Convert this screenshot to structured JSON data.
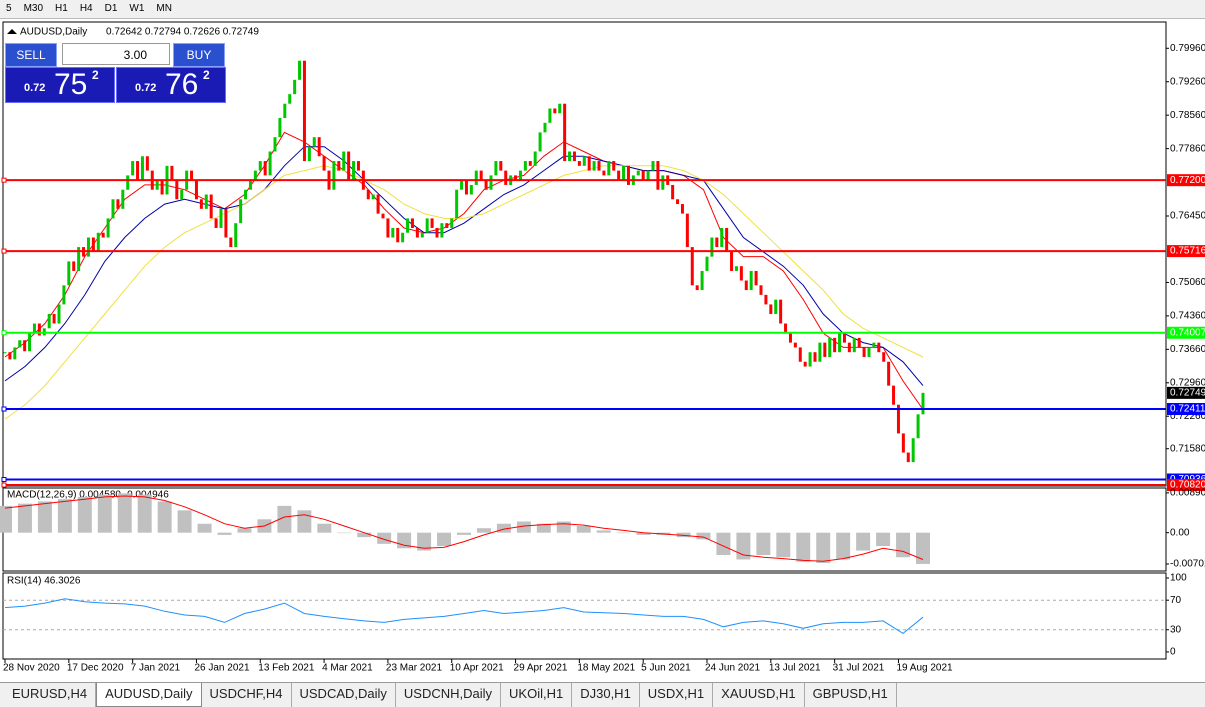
{
  "toolbar": [
    "5",
    "M30",
    "H1",
    "H4",
    "D1",
    "W1",
    "MN"
  ],
  "trade_panel": {
    "sell": "SELL",
    "buy": "BUY",
    "volume": "3.00",
    "bid_big": "0.72",
    "bid_main": "75",
    "bid_small": "2",
    "ask_big": "0.72",
    "ask_main": "76",
    "ask_small": "2"
  },
  "tabs": [
    "EURUSD,H4",
    "AUDUSD,Daily",
    "USDCHF,H4",
    "USDCAD,Daily",
    "USDCNH,Daily",
    "UKOil,H1",
    "DJ30,H1",
    "USDX,H1",
    "XAUUSD,H1",
    "GBPUSD,H1"
  ],
  "active_tab": 1,
  "chart_data": [
    {
      "type": "candlestick",
      "title": "AUDUSD,Daily",
      "subtitle": "0.72642 0.72794 0.72626 0.72749",
      "up_color": "#00c800",
      "down_color": "#ff0000",
      "categories": [
        "28 Nov 2020",
        null,
        null,
        null,
        null,
        null,
        null,
        null,
        null,
        null,
        null,
        null,
        null,
        "17 Dec 2020",
        null,
        null,
        null,
        null,
        null,
        null,
        null,
        null,
        null,
        null,
        null,
        null,
        "7 Jan 2021",
        null,
        null,
        null,
        null,
        null,
        null,
        null,
        null,
        null,
        null,
        null,
        null,
        "26 Jan 2021",
        null,
        null,
        null,
        null,
        null,
        null,
        null,
        null,
        null,
        null,
        null,
        null,
        "13 Feb 2021",
        null,
        null,
        null,
        null,
        null,
        null,
        null,
        null,
        null,
        null,
        null,
        null,
        "4 Mar 2021",
        null,
        null,
        null,
        null,
        null,
        null,
        null,
        null,
        null,
        null,
        null,
        null,
        "23 Mar 2021",
        null,
        null,
        null,
        null,
        null,
        null,
        null,
        null,
        null,
        null,
        null,
        null,
        "10 Apr 2021",
        null,
        null,
        null,
        null,
        null,
        null,
        null,
        null,
        null,
        null,
        null,
        null,
        "29 Apr 2021",
        null,
        null,
        null,
        null,
        null,
        null,
        null,
        null,
        null,
        null,
        null,
        null,
        "18 May 2021",
        null,
        null,
        null,
        null,
        null,
        null,
        null,
        null,
        null,
        null,
        null,
        null,
        "5 Jun 2021",
        null,
        null,
        null,
        null,
        null,
        null,
        null,
        null,
        null,
        null,
        null,
        null,
        "24 Jun 2021",
        null,
        null,
        null,
        null,
        null,
        null,
        null,
        null,
        null,
        null,
        null,
        null,
        "13 Jul 2021",
        null,
        null,
        null,
        null,
        null,
        null,
        null,
        null,
        null,
        null,
        null,
        null,
        "31 Jul 2021",
        null,
        null,
        null,
        null,
        null,
        null,
        null,
        null,
        null,
        null,
        null,
        null,
        "19 Aug 2021",
        null,
        null,
        null,
        null,
        null
      ],
      "values": [
        0.736,
        0.7345,
        0.737,
        0.7385,
        0.7362,
        0.74,
        0.742,
        0.7395,
        0.741,
        0.744,
        0.742,
        0.746,
        0.75,
        0.755,
        0.753,
        0.758,
        0.756,
        0.76,
        0.757,
        0.761,
        0.76,
        0.764,
        0.768,
        0.766,
        0.77,
        0.773,
        0.776,
        0.772,
        0.777,
        0.774,
        0.77,
        0.772,
        0.769,
        0.775,
        0.772,
        0.768,
        0.77,
        0.774,
        0.772,
        0.768,
        0.766,
        0.769,
        0.764,
        0.762,
        0.766,
        0.76,
        0.758,
        0.763,
        0.768,
        0.77,
        0.772,
        0.774,
        0.776,
        0.773,
        0.778,
        0.781,
        0.785,
        0.788,
        0.79,
        0.793,
        0.797,
        0.776,
        0.779,
        0.781,
        0.777,
        0.774,
        0.77,
        0.776,
        0.774,
        0.778,
        0.772,
        0.776,
        0.774,
        0.77,
        0.768,
        0.769,
        0.765,
        0.764,
        0.76,
        0.762,
        0.759,
        0.761,
        0.764,
        0.762,
        0.76,
        0.761,
        0.764,
        0.762,
        0.76,
        0.763,
        0.762,
        0.764,
        0.77,
        0.772,
        0.769,
        0.771,
        0.774,
        0.772,
        0.77,
        0.773,
        0.776,
        0.774,
        0.771,
        0.773,
        0.772,
        0.774,
        0.776,
        0.775,
        0.778,
        0.782,
        0.784,
        0.787,
        0.786,
        0.788,
        0.776,
        0.778,
        0.776,
        0.775,
        0.777,
        0.774,
        0.776,
        0.774,
        0.773,
        0.776,
        0.774,
        0.772,
        0.775,
        0.771,
        0.773,
        0.774,
        0.772,
        0.774,
        0.776,
        0.77,
        0.773,
        0.771,
        0.768,
        0.767,
        0.765,
        0.758,
        0.75,
        0.749,
        0.753,
        0.756,
        0.76,
        0.758,
        0.762,
        0.757,
        0.753,
        0.754,
        0.751,
        0.749,
        0.753,
        0.75,
        0.748,
        0.746,
        0.744,
        0.747,
        0.742,
        0.74,
        0.738,
        0.737,
        0.734,
        0.733,
        0.736,
        0.734,
        0.738,
        0.735,
        0.739,
        0.736,
        0.74,
        0.738,
        0.736,
        0.739,
        0.737,
        0.735,
        0.737,
        0.738,
        0.736,
        0.734,
        0.729,
        0.725,
        0.719,
        0.715,
        0.713,
        0.718,
        0.723,
        0.7275
      ],
      "overlays": [
        {
          "color": "#ff0000",
          "values": [
            0.735,
            0.738,
            0.742,
            0.748,
            0.756,
            0.762,
            0.768,
            0.771,
            0.771,
            0.77,
            0.768,
            0.766,
            0.769,
            0.775,
            0.782,
            0.78,
            0.777,
            0.774,
            0.771,
            0.766,
            0.762,
            0.761,
            0.762,
            0.765,
            0.77,
            0.772,
            0.773,
            0.777,
            0.78,
            0.778,
            0.776,
            0.775,
            0.774,
            0.774,
            0.773,
            0.77,
            0.76,
            0.756,
            0.756,
            0.753,
            0.747,
            0.74,
            0.737,
            0.737,
            0.737,
            0.73,
            0.724
          ]
        },
        {
          "color": "#0000aa",
          "values": [
            0.73,
            0.733,
            0.737,
            0.742,
            0.748,
            0.755,
            0.76,
            0.764,
            0.767,
            0.768,
            0.767,
            0.766,
            0.767,
            0.77,
            0.775,
            0.779,
            0.779,
            0.776,
            0.772,
            0.768,
            0.764,
            0.761,
            0.761,
            0.763,
            0.766,
            0.769,
            0.771,
            0.774,
            0.777,
            0.777,
            0.776,
            0.775,
            0.774,
            0.774,
            0.773,
            0.772,
            0.766,
            0.76,
            0.757,
            0.754,
            0.75,
            0.744,
            0.74,
            0.738,
            0.737,
            0.734,
            0.729
          ]
        },
        {
          "color": "#f0e040",
          "values": [
            0.722,
            0.725,
            0.729,
            0.734,
            0.739,
            0.744,
            0.749,
            0.754,
            0.758,
            0.761,
            0.763,
            0.765,
            0.767,
            0.77,
            0.773,
            0.774,
            0.775,
            0.774,
            0.772,
            0.77,
            0.767,
            0.765,
            0.764,
            0.764,
            0.765,
            0.767,
            0.769,
            0.771,
            0.773,
            0.774,
            0.775,
            0.775,
            0.775,
            0.775,
            0.774,
            0.772,
            0.769,
            0.765,
            0.761,
            0.757,
            0.753,
            0.749,
            0.744,
            0.741,
            0.739,
            0.737,
            0.735
          ]
        }
      ],
      "levels": [
        {
          "value": 0.772,
          "label": "0.77200",
          "color": "#ff0000"
        },
        {
          "value": 0.75716,
          "label": "0.75716",
          "color": "#ff0000"
        },
        {
          "value": 0.74007,
          "label": "0.74007",
          "color": "#00ff00"
        },
        {
          "value": 0.72411,
          "label": "0.72411",
          "color": "#0000ff"
        },
        {
          "value": 0.70936,
          "label": "0.70936",
          "color": "#0000ff"
        },
        {
          "value": 0.7082,
          "label": "0.70820",
          "color": "#ff0000"
        }
      ],
      "last": {
        "value": 0.72749,
        "label": "0.72749"
      },
      "ylim": [
        0.708,
        0.8051
      ],
      "yticks": [
        {
          "value": 0.7996,
          "label": "0.79960"
        },
        {
          "value": 0.7926,
          "label": "0.79260"
        },
        {
          "value": 0.7856,
          "label": "0.78560"
        },
        {
          "value": 0.7786,
          "label": "0.77860"
        },
        {
          "value": 0.7645,
          "label": "0.76450"
        },
        {
          "value": 0.7506,
          "label": "0.75060"
        },
        {
          "value": 0.7436,
          "label": "0.74360"
        },
        {
          "value": 0.7366,
          "label": "0.73660"
        },
        {
          "value": 0.7296,
          "label": "0.72960"
        },
        {
          "value": 0.7226,
          "label": "0.72260"
        },
        {
          "value": 0.7158,
          "label": "0.71580"
        }
      ]
    },
    {
      "type": "macd",
      "title": "MACD(12,26,9) 0.004580 -0.004946",
      "color": "#c0c0c0",
      "signal_color": "#ff0000",
      "values": [
        0.006,
        0.0065,
        0.007,
        0.0075,
        0.008,
        0.0085,
        0.0088,
        0.0085,
        0.007,
        0.005,
        0.002,
        -0.0005,
        0.001,
        0.003,
        0.006,
        0.005,
        0.002,
        0.0,
        -0.001,
        -0.0025,
        -0.0035,
        -0.004,
        -0.003,
        -0.0005,
        0.001,
        0.002,
        0.0025,
        0.002,
        0.0025,
        0.0015,
        0.0005,
        0.0,
        -0.0005,
        -0.0005,
        -0.001,
        -0.0015,
        -0.005,
        -0.006,
        -0.005,
        -0.0055,
        -0.0065,
        -0.0068,
        -0.006,
        -0.004,
        -0.003,
        -0.0055,
        -0.007
      ],
      "signal": [
        0.0055,
        0.006,
        0.0065,
        0.007,
        0.0075,
        0.008,
        0.0082,
        0.008,
        0.0072,
        0.0058,
        0.004,
        0.002,
        0.001,
        0.0015,
        0.0035,
        0.004,
        0.003,
        0.0015,
        0.0,
        -0.0015,
        -0.0028,
        -0.0035,
        -0.0033,
        -0.002,
        -0.0005,
        0.0008,
        0.0015,
        0.0018,
        0.002,
        0.0017,
        0.001,
        0.0005,
        0.0,
        -0.0003,
        -0.0006,
        -0.001,
        -0.003,
        -0.005,
        -0.0055,
        -0.0058,
        -0.0062,
        -0.0064,
        -0.0058,
        -0.0048,
        -0.0035,
        -0.0042,
        -0.006
      ],
      "ylim": [
        -0.00858,
        0.01
      ],
      "yticks": [
        0.008904,
        {
          "value": 0,
          "label": "0.00"
        },
        -0.00701
      ]
    },
    {
      "type": "rsi",
      "title": "RSI(14) 46.3026",
      "color": "#1e90ff",
      "values": [
        60,
        62,
        66,
        72,
        68,
        66,
        65,
        62,
        55,
        50,
        48,
        40,
        52,
        58,
        66,
        52,
        48,
        45,
        42,
        40,
        44,
        46,
        48,
        52,
        56,
        52,
        54,
        56,
        60,
        54,
        53,
        52,
        50,
        48,
        48,
        44,
        34,
        40,
        42,
        38,
        32,
        38,
        40,
        40,
        42,
        25,
        47
      ],
      "levels": [
        70,
        30
      ],
      "ylim": [
        -9.6,
        106.8
      ],
      "yticks": [
        100,
        70,
        30,
        0
      ]
    }
  ]
}
